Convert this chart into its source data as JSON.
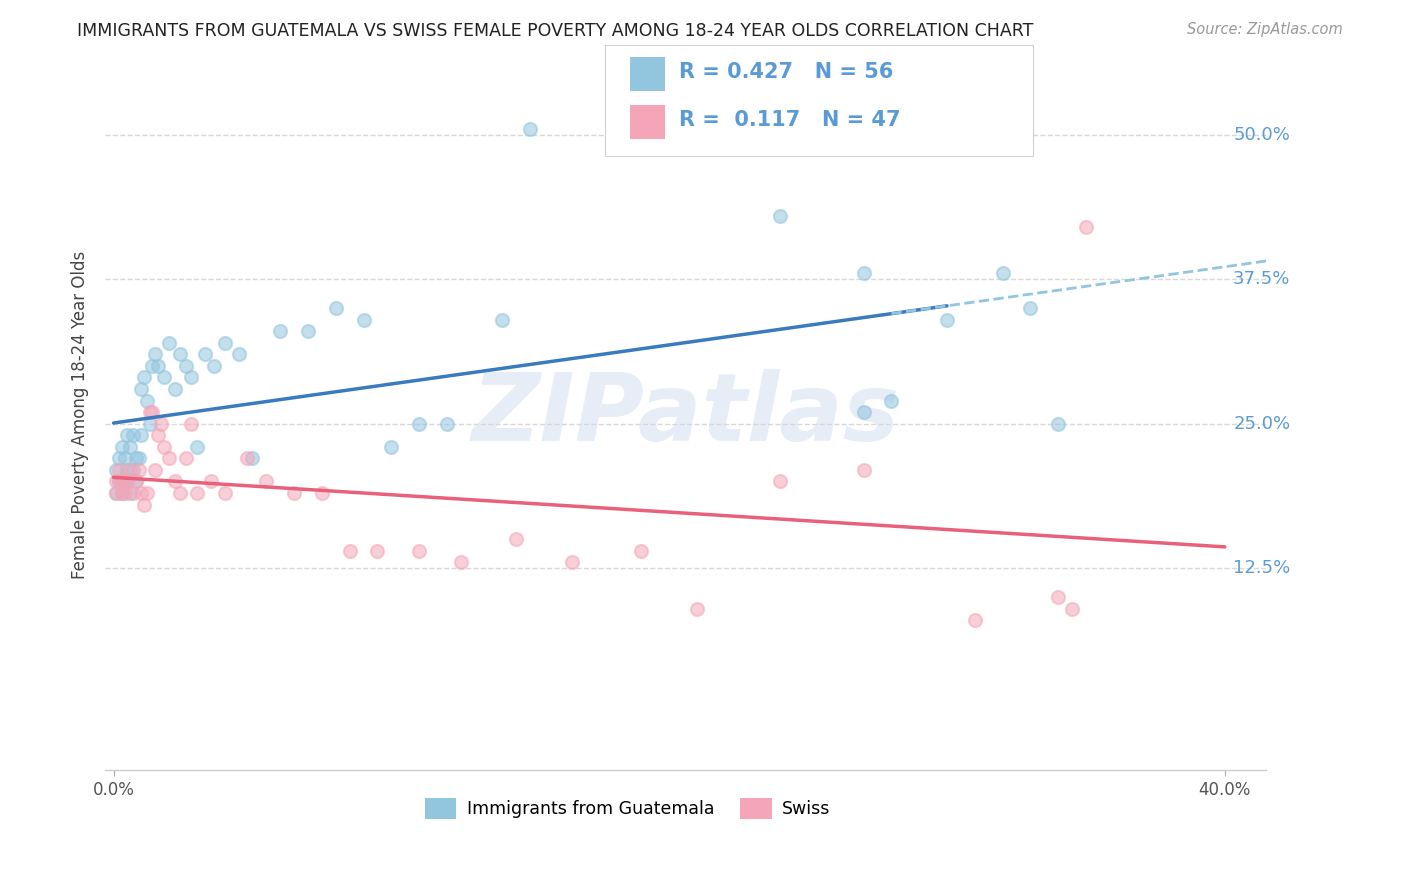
{
  "title": "IMMIGRANTS FROM GUATEMALA VS SWISS FEMALE POVERTY AMONG 18-24 YEAR OLDS CORRELATION CHART",
  "source": "Source: ZipAtlas.com",
  "ylabel": "Female Poverty Among 18-24 Year Olds",
  "ytick_labels": [
    "50.0%",
    "37.5%",
    "25.0%",
    "12.5%"
  ],
  "ytick_vals": [
    0.5,
    0.375,
    0.25,
    0.125
  ],
  "xlim": [
    -0.003,
    0.415
  ],
  "ylim": [
    -0.05,
    0.565
  ],
  "color_blue": "#92c5de",
  "color_pink": "#f4a6b8",
  "line_blue": "#3a7abf",
  "line_pink": "#e8607a",
  "line_dashed_color": "#92c5de",
  "watermark": "ZIPatlas",
  "bg_color": "#ffffff",
  "grid_color": "#d8d8d8",
  "ytick_color": "#5b9bd5",
  "title_color": "#222222",
  "source_color": "#999999",
  "ylabel_color": "#444444",
  "marker_size": 90,
  "marker_alpha": 0.55,
  "guatemala_x": [
    0.001,
    0.001,
    0.002,
    0.002,
    0.003,
    0.003,
    0.003,
    0.004,
    0.004,
    0.005,
    0.005,
    0.005,
    0.006,
    0.006,
    0.007,
    0.007,
    0.008,
    0.008,
    0.009,
    0.01,
    0.01,
    0.011,
    0.012,
    0.013,
    0.014,
    0.015,
    0.016,
    0.018,
    0.02,
    0.022,
    0.024,
    0.026,
    0.028,
    0.03,
    0.033,
    0.036,
    0.04,
    0.045,
    0.05,
    0.06,
    0.07,
    0.08,
    0.09,
    0.1,
    0.11,
    0.12,
    0.14,
    0.15,
    0.24,
    0.27,
    0.27,
    0.28,
    0.3,
    0.32,
    0.33,
    0.34
  ],
  "guatemala_y": [
    0.21,
    0.19,
    0.22,
    0.2,
    0.23,
    0.2,
    0.19,
    0.22,
    0.2,
    0.24,
    0.21,
    0.2,
    0.23,
    0.19,
    0.24,
    0.21,
    0.22,
    0.2,
    0.22,
    0.28,
    0.24,
    0.29,
    0.27,
    0.25,
    0.3,
    0.31,
    0.3,
    0.29,
    0.32,
    0.28,
    0.31,
    0.3,
    0.29,
    0.23,
    0.31,
    0.3,
    0.32,
    0.31,
    0.22,
    0.33,
    0.33,
    0.35,
    0.34,
    0.23,
    0.25,
    0.25,
    0.34,
    0.505,
    0.43,
    0.38,
    0.26,
    0.27,
    0.34,
    0.38,
    0.35,
    0.25
  ],
  "swiss_x": [
    0.001,
    0.001,
    0.002,
    0.002,
    0.003,
    0.003,
    0.004,
    0.005,
    0.006,
    0.007,
    0.008,
    0.009,
    0.01,
    0.011,
    0.012,
    0.013,
    0.014,
    0.015,
    0.016,
    0.017,
    0.018,
    0.02,
    0.022,
    0.024,
    0.026,
    0.028,
    0.03,
    0.035,
    0.04,
    0.048,
    0.055,
    0.065,
    0.075,
    0.085,
    0.095,
    0.11,
    0.125,
    0.145,
    0.165,
    0.19,
    0.21,
    0.24,
    0.27,
    0.31,
    0.34,
    0.345,
    0.35
  ],
  "swiss_y": [
    0.2,
    0.19,
    0.21,
    0.2,
    0.19,
    0.2,
    0.19,
    0.2,
    0.21,
    0.19,
    0.2,
    0.21,
    0.19,
    0.18,
    0.19,
    0.26,
    0.26,
    0.21,
    0.24,
    0.25,
    0.23,
    0.22,
    0.2,
    0.19,
    0.22,
    0.25,
    0.19,
    0.2,
    0.19,
    0.22,
    0.2,
    0.19,
    0.19,
    0.14,
    0.14,
    0.14,
    0.13,
    0.15,
    0.13,
    0.14,
    0.09,
    0.2,
    0.21,
    0.08,
    0.1,
    0.09,
    0.42
  ]
}
